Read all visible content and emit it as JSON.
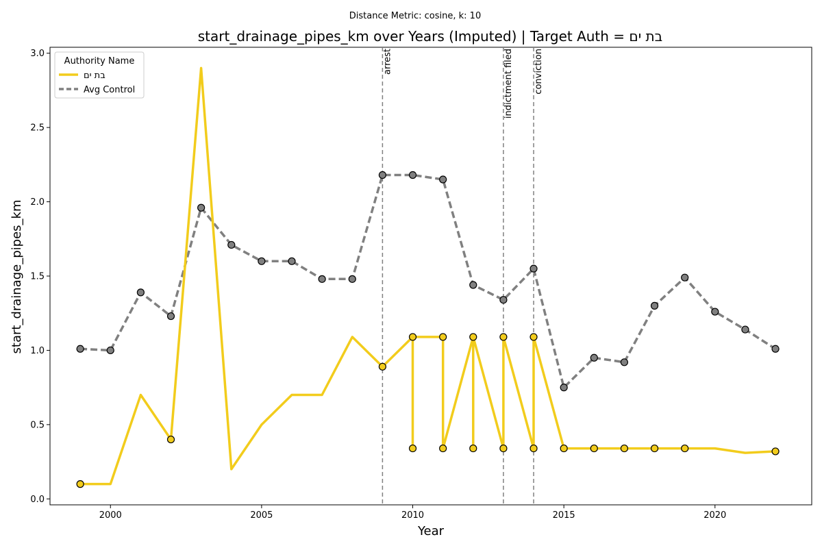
{
  "chart_data": {
    "type": "line",
    "suptitle": "Distance Metric: cosine, k: 10",
    "title": "start_drainage_pipes_km over Years (Imputed) | Target Auth = בת ים",
    "xlabel": "Year",
    "ylabel": "start_drainage_pipes_km",
    "xlim": [
      1998,
      2023.2
    ],
    "ylim": [
      -0.04,
      3.04
    ],
    "x_ticks": [
      2000,
      2005,
      2010,
      2015,
      2020
    ],
    "y_ticks": [
      0.0,
      0.5,
      1.0,
      1.5,
      2.0,
      2.5,
      3.0
    ],
    "x_tick_labels": [
      "2000",
      "2005",
      "2010",
      "2015",
      "2020"
    ],
    "y_tick_labels": [
      "0.0",
      "0.5",
      "1.0",
      "1.5",
      "2.0",
      "2.5",
      "3.0"
    ],
    "grid": false,
    "legend": {
      "title": "Authority Name",
      "position": "top-left",
      "entries": [
        "בת ים",
        "Avg Control"
      ]
    },
    "series": [
      {
        "name": "בת ים",
        "color": "#f2cc1c",
        "style": "solid",
        "points": [
          [
            1999,
            0.1
          ],
          [
            2000,
            0.1
          ],
          [
            2001,
            0.7
          ],
          [
            2002,
            0.4
          ],
          [
            2003,
            2.9
          ],
          [
            2004,
            0.2
          ],
          [
            2005,
            0.5
          ],
          [
            2006,
            0.7
          ],
          [
            2007,
            0.7
          ],
          [
            2008,
            1.09
          ],
          [
            2009,
            0.89
          ],
          [
            2010,
            1.09
          ],
          [
            2010,
            0.34
          ],
          [
            2010,
            1.09
          ],
          [
            2011,
            1.09
          ],
          [
            2011,
            0.34
          ],
          [
            2012,
            1.09
          ],
          [
            2012,
            0.34
          ],
          [
            2012,
            1.09
          ],
          [
            2013,
            0.34
          ],
          [
            2013,
            1.09
          ],
          [
            2014,
            0.34
          ],
          [
            2014,
            1.09
          ],
          [
            2015,
            0.34
          ],
          [
            2016,
            0.34
          ],
          [
            2017,
            0.34
          ],
          [
            2018,
            0.34
          ],
          [
            2019,
            0.34
          ],
          [
            2020,
            0.34
          ],
          [
            2021,
            0.31
          ],
          [
            2022,
            0.32
          ]
        ],
        "markers": [
          [
            1999,
            0.1
          ],
          [
            2002,
            0.4
          ],
          [
            2009,
            0.89
          ],
          [
            2010,
            1.09
          ],
          [
            2010,
            0.34
          ],
          [
            2011,
            1.09
          ],
          [
            2011,
            0.34
          ],
          [
            2012,
            1.09
          ],
          [
            2012,
            0.34
          ],
          [
            2013,
            1.09
          ],
          [
            2013,
            0.34
          ],
          [
            2014,
            1.09
          ],
          [
            2014,
            0.34
          ],
          [
            2015,
            0.34
          ],
          [
            2016,
            0.34
          ],
          [
            2017,
            0.34
          ],
          [
            2018,
            0.34
          ],
          [
            2019,
            0.34
          ],
          [
            2022,
            0.32
          ]
        ]
      },
      {
        "name": "Avg Control",
        "color": "#808080",
        "style": "dashed",
        "points": [
          [
            1999,
            1.01
          ],
          [
            2000,
            1.0
          ],
          [
            2001,
            1.39
          ],
          [
            2002,
            1.23
          ],
          [
            2003,
            1.96
          ],
          [
            2004,
            1.71
          ],
          [
            2005,
            1.6
          ],
          [
            2006,
            1.6
          ],
          [
            2007,
            1.48
          ],
          [
            2008,
            1.48
          ],
          [
            2009,
            2.18
          ],
          [
            2010,
            2.18
          ],
          [
            2011,
            2.15
          ],
          [
            2012,
            1.44
          ],
          [
            2013,
            1.34
          ],
          [
            2014,
            1.55
          ],
          [
            2015,
            0.75
          ],
          [
            2016,
            0.95
          ],
          [
            2017,
            0.92
          ],
          [
            2018,
            1.3
          ],
          [
            2019,
            1.49
          ],
          [
            2020,
            1.26
          ],
          [
            2021,
            1.14
          ],
          [
            2022,
            1.01
          ]
        ],
        "markers": [
          [
            1999,
            1.01
          ],
          [
            2000,
            1.0
          ],
          [
            2001,
            1.39
          ],
          [
            2002,
            1.23
          ],
          [
            2003,
            1.96
          ],
          [
            2004,
            1.71
          ],
          [
            2005,
            1.6
          ],
          [
            2006,
            1.6
          ],
          [
            2007,
            1.48
          ],
          [
            2008,
            1.48
          ],
          [
            2009,
            2.18
          ],
          [
            2010,
            2.18
          ],
          [
            2011,
            2.15
          ],
          [
            2012,
            1.44
          ],
          [
            2013,
            1.34
          ],
          [
            2014,
            1.55
          ],
          [
            2015,
            0.75
          ],
          [
            2016,
            0.95
          ],
          [
            2017,
            0.92
          ],
          [
            2018,
            1.3
          ],
          [
            2019,
            1.49
          ],
          [
            2020,
            1.26
          ],
          [
            2021,
            1.14
          ],
          [
            2022,
            1.01
          ]
        ]
      }
    ],
    "events": [
      {
        "x": 2009,
        "label": "arrest"
      },
      {
        "x": 2013,
        "label": "indictment filed"
      },
      {
        "x": 2014,
        "label": "conviction"
      }
    ]
  }
}
